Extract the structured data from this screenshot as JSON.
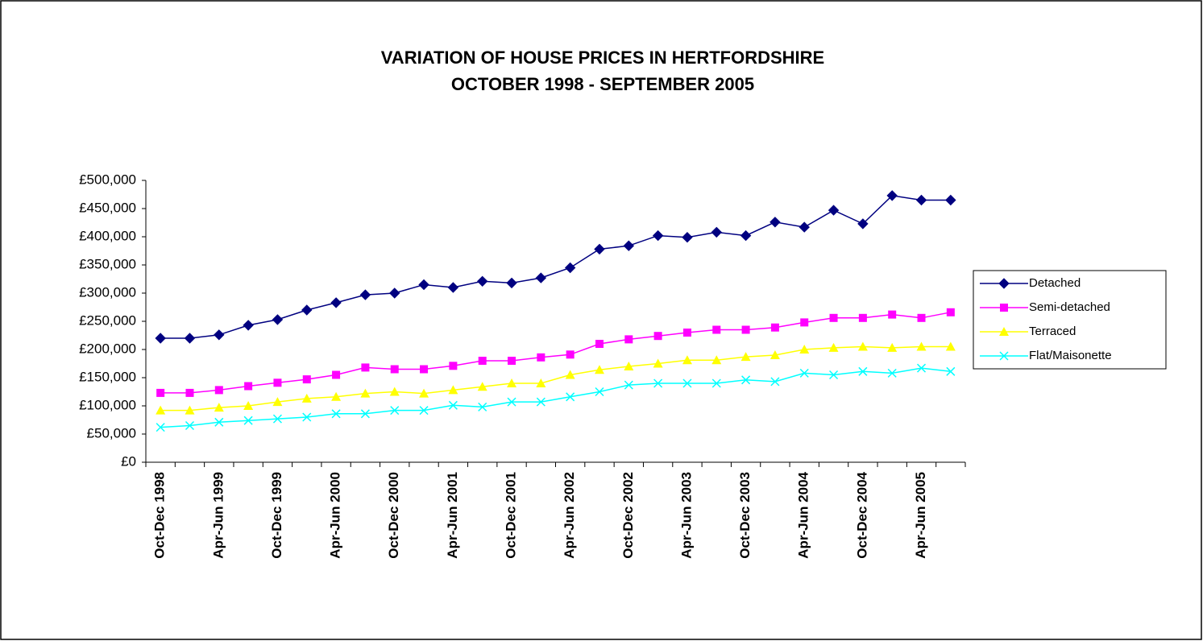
{
  "chart_data": {
    "type": "line",
    "title": "VARIATION OF HOUSE PRICES IN HERTFORDSHIRE",
    "subtitle": "OCTOBER 1998 - SEPTEMBER 2005",
    "categories": [
      "Oct-Dec 1998",
      null,
      "Apr-Jun 1999",
      null,
      "Oct-Dec 1999",
      null,
      "Apr-Jun 2000",
      null,
      "Oct-Dec 2000",
      null,
      "Apr-Jun 2001",
      null,
      "Oct-Dec 2001",
      null,
      "Apr-Jun 2002",
      null,
      "Oct-Dec 2002",
      null,
      "Apr-Jun 2003",
      null,
      "Oct-Dec 2003",
      null,
      "Apr-Jun 2004",
      null,
      "Oct-Dec 2004",
      null,
      "Apr-Jun 2005",
      null
    ],
    "series": [
      {
        "name": "Detached",
        "color": "#000080",
        "marker": "diamond",
        "values": [
          220000,
          220000,
          226000,
          243000,
          253000,
          270000,
          283000,
          297000,
          300000,
          315000,
          310000,
          321000,
          318000,
          327000,
          345000,
          378000,
          384000,
          402000,
          399000,
          408000,
          402000,
          426000,
          417000,
          447000,
          423000,
          473000,
          465000,
          465000
        ]
      },
      {
        "name": "Semi-detached",
        "color": "#ff00ff",
        "marker": "square",
        "values": [
          123000,
          123000,
          128000,
          135000,
          141000,
          147000,
          155000,
          168000,
          165000,
          165000,
          171000,
          180000,
          180000,
          186000,
          191000,
          210000,
          218000,
          224000,
          230000,
          235000,
          235000,
          239000,
          248000,
          256000,
          256000,
          262000,
          256000,
          266000
        ]
      },
      {
        "name": "Terraced",
        "color": "#ffff00",
        "marker": "triangle",
        "values": [
          92000,
          92000,
          97000,
          100000,
          107000,
          113000,
          116000,
          122000,
          125000,
          122000,
          128000,
          134000,
          140000,
          140000,
          155000,
          164000,
          170000,
          175000,
          181000,
          181000,
          187000,
          190000,
          200000,
          203000,
          205000,
          203000,
          205000,
          205000
        ]
      },
      {
        "name": "Flat/Maisonette",
        "color": "#00ffff",
        "marker": "x",
        "values": [
          62000,
          65000,
          71000,
          74000,
          77000,
          80000,
          86000,
          86000,
          92000,
          92000,
          101000,
          98000,
          107000,
          107000,
          116000,
          125000,
          137000,
          140000,
          140000,
          140000,
          146000,
          143000,
          158000,
          155000,
          161000,
          158000,
          167000,
          161000
        ]
      }
    ],
    "ylim": [
      0,
      500000
    ],
    "yticks": [
      {
        "value": 0,
        "label": "£0"
      },
      {
        "value": 50000,
        "label": "£50,000"
      },
      {
        "value": 100000,
        "label": "£100,000"
      },
      {
        "value": 150000,
        "label": "£150,000"
      },
      {
        "value": 200000,
        "label": "£200,000"
      },
      {
        "value": 250000,
        "label": "£250,000"
      },
      {
        "value": 300000,
        "label": "£300,000"
      },
      {
        "value": 350000,
        "label": "£350,000"
      },
      {
        "value": 400000,
        "label": "£400,000"
      },
      {
        "value": 450000,
        "label": "£450,000"
      },
      {
        "value": 500000,
        "label": "£500,000"
      }
    ],
    "legend": "right"
  }
}
